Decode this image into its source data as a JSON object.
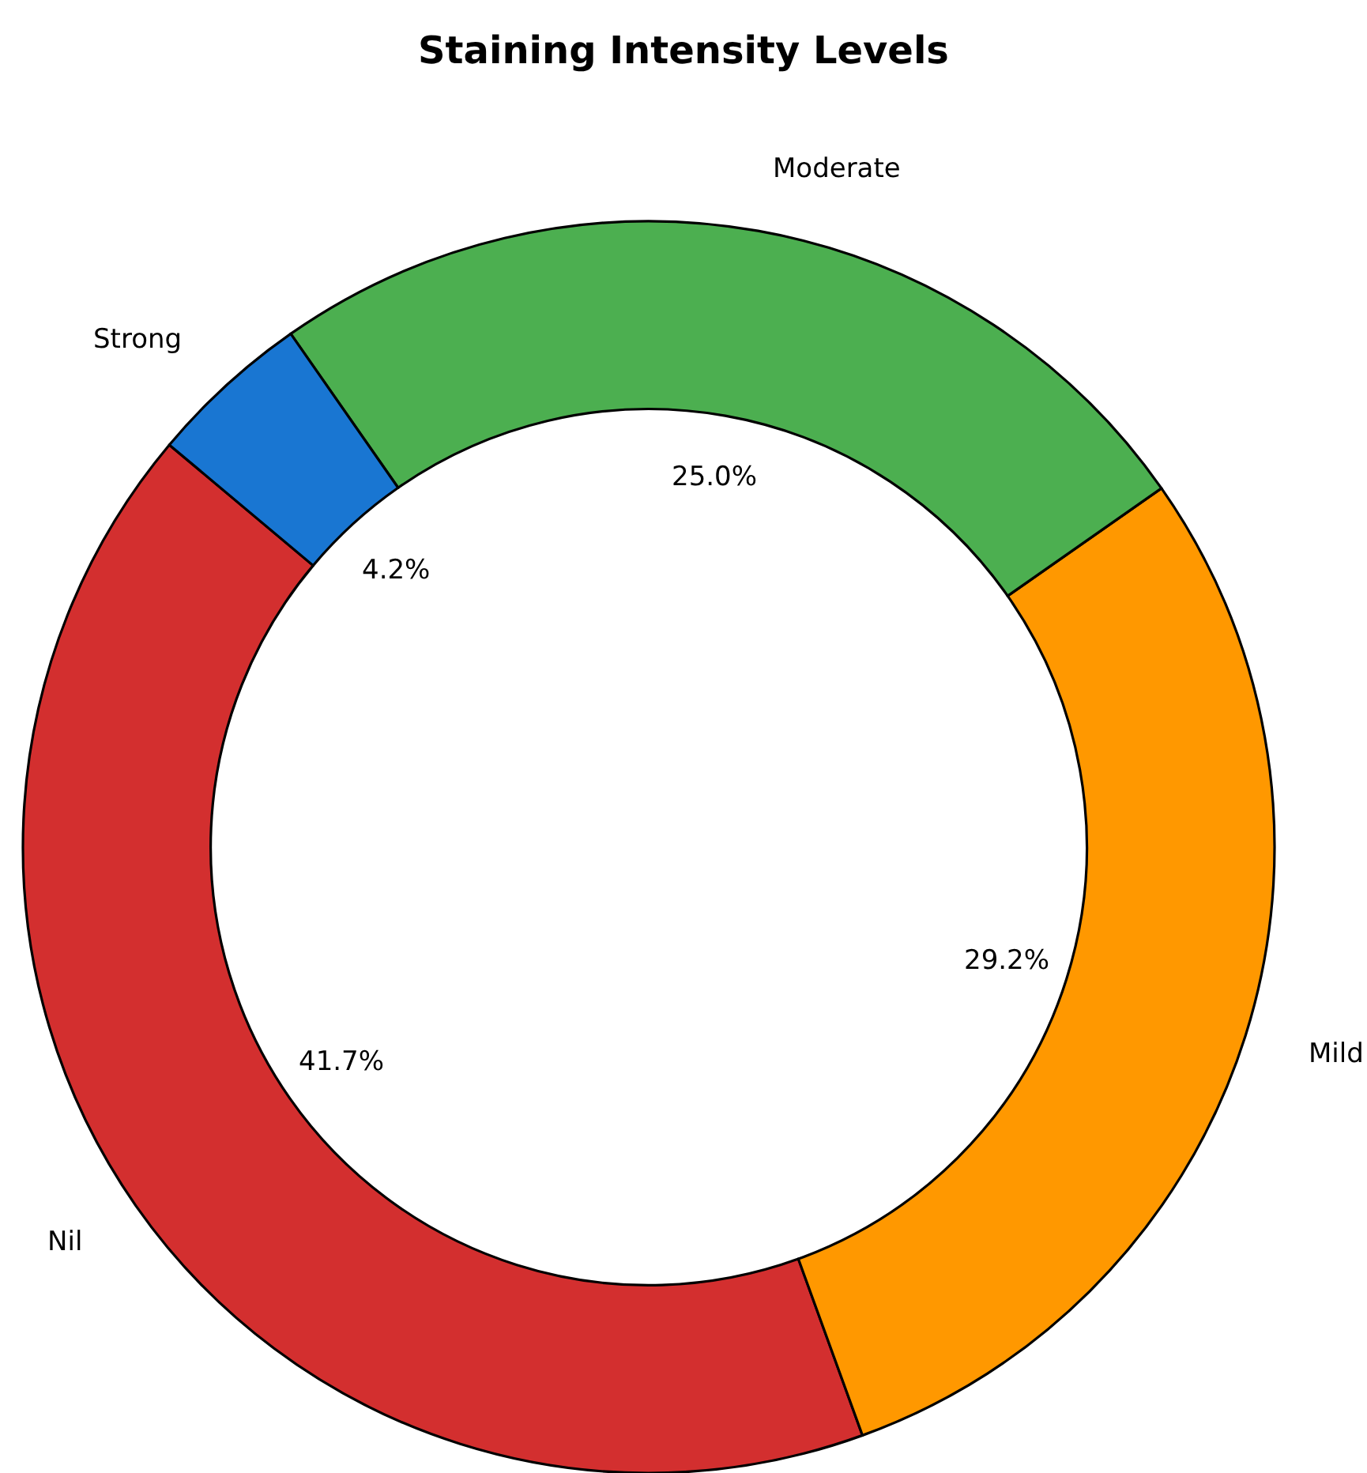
{
  "chart_data": {
    "type": "donut",
    "title": "Staining Intensity Levels",
    "categories": [
      "Nil",
      "Mild",
      "Moderate",
      "Strong"
    ],
    "values": [
      41.7,
      29.2,
      25.0,
      4.2
    ],
    "value_labels": [
      "41.7%",
      "29.2%",
      "25.0%",
      "4.2%"
    ],
    "colors": [
      "#d32f2f",
      "#ff9800",
      "#4caf50",
      "#1976d2"
    ]
  }
}
